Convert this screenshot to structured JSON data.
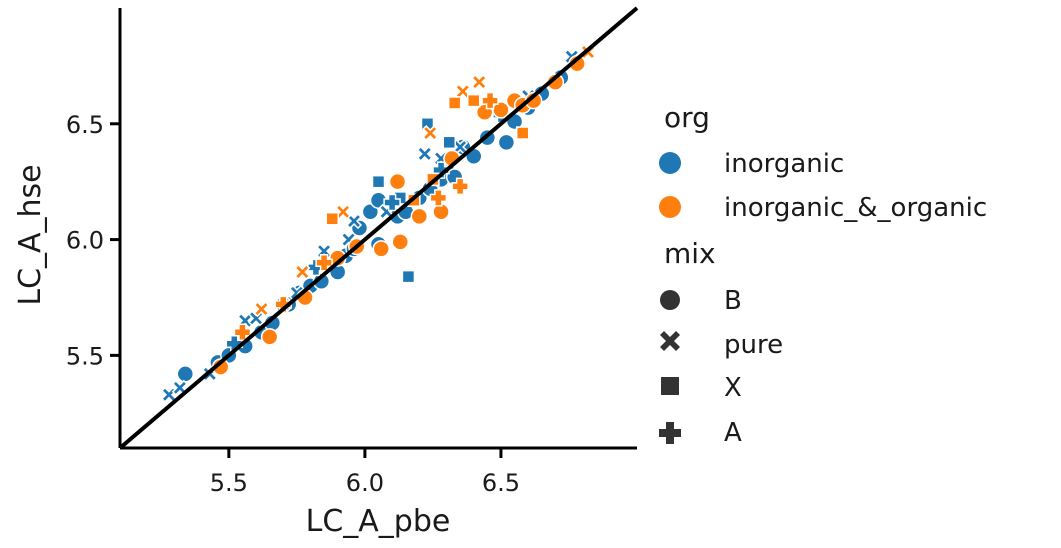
{
  "chart_data": {
    "type": "scatter",
    "title": "",
    "xlabel": "LC_A_pbe",
    "ylabel": "LC_A_hse",
    "xlim": [
      5.1,
      7.0
    ],
    "ylim": [
      5.1,
      7.0
    ],
    "xticks": [
      "5.5",
      "6.0",
      "6.5"
    ],
    "yticks": [
      "5.5",
      "6.0",
      "6.5"
    ],
    "grid": false,
    "reference_line": {
      "from": [
        5.1,
        5.1
      ],
      "to": [
        7.0,
        7.0
      ],
      "color": "#000000"
    },
    "legend": {
      "placement": "right",
      "hue_title": "org",
      "hue_entries": [
        {
          "label": "inorganic",
          "color": "#1f77b4"
        },
        {
          "label": "inorganic_&_organic",
          "color": "#ff7f0e"
        }
      ],
      "style_title": "mix",
      "style_entries": [
        {
          "label": "B",
          "marker": "circle"
        },
        {
          "label": "pure",
          "marker": "x"
        },
        {
          "label": "X",
          "marker": "square"
        },
        {
          "label": "A",
          "marker": "plus"
        }
      ]
    },
    "series": [
      {
        "org": "inorganic",
        "mix": "B",
        "points": [
          [
            5.34,
            5.42
          ],
          [
            5.46,
            5.47
          ],
          [
            5.5,
            5.5
          ],
          [
            5.56,
            5.54
          ],
          [
            5.62,
            5.6
          ],
          [
            5.66,
            5.64
          ],
          [
            5.72,
            5.72
          ],
          [
            5.76,
            5.77
          ],
          [
            5.8,
            5.8
          ],
          [
            5.84,
            5.82
          ],
          [
            5.9,
            5.86
          ],
          [
            5.93,
            5.93
          ],
          [
            5.96,
            5.96
          ],
          [
            5.98,
            6.05
          ],
          [
            6.02,
            6.12
          ],
          [
            6.05,
            6.17
          ],
          [
            6.05,
            5.98
          ],
          [
            6.12,
            6.1
          ],
          [
            6.15,
            6.12
          ],
          [
            6.2,
            6.18
          ],
          [
            6.24,
            6.22
          ],
          [
            6.28,
            6.26
          ],
          [
            6.3,
            6.32
          ],
          [
            6.33,
            6.27
          ],
          [
            6.36,
            6.4
          ],
          [
            6.4,
            6.36
          ],
          [
            6.45,
            6.44
          ],
          [
            6.52,
            6.42
          ],
          [
            6.55,
            6.51
          ],
          [
            6.6,
            6.57
          ],
          [
            6.65,
            6.63
          ],
          [
            6.72,
            6.7
          ]
        ]
      },
      {
        "org": "inorganic",
        "mix": "pure",
        "points": [
          [
            5.28,
            5.33
          ],
          [
            5.32,
            5.36
          ],
          [
            5.43,
            5.42
          ],
          [
            5.56,
            5.65
          ],
          [
            5.6,
            5.66
          ],
          [
            5.7,
            5.72
          ],
          [
            5.75,
            5.77
          ],
          [
            5.85,
            5.95
          ],
          [
            5.94,
            6.0
          ],
          [
            5.96,
            6.08
          ],
          [
            6.08,
            6.12
          ],
          [
            6.22,
            6.37
          ],
          [
            6.28,
            6.35
          ],
          [
            6.35,
            6.4
          ],
          [
            6.6,
            6.62
          ],
          [
            6.76,
            6.79
          ]
        ]
      },
      {
        "org": "inorganic",
        "mix": "X",
        "points": [
          [
            6.05,
            6.25
          ],
          [
            6.23,
            6.5
          ],
          [
            6.16,
            5.84
          ],
          [
            6.31,
            6.42
          ],
          [
            6.13,
            6.18
          ]
        ]
      },
      {
        "org": "inorganic",
        "mix": "A",
        "points": [
          [
            5.52,
            5.55
          ],
          [
            5.82,
            5.88
          ],
          [
            6.1,
            6.16
          ],
          [
            6.28,
            6.3
          ],
          [
            6.5,
            6.54
          ]
        ]
      },
      {
        "org": "inorganic_&_organic",
        "mix": "B",
        "points": [
          [
            5.47,
            5.45
          ],
          [
            5.65,
            5.58
          ],
          [
            5.78,
            5.75
          ],
          [
            5.9,
            5.92
          ],
          [
            5.97,
            5.97
          ],
          [
            6.06,
            5.96
          ],
          [
            6.12,
            6.25
          ],
          [
            6.13,
            5.99
          ],
          [
            6.2,
            6.1
          ],
          [
            6.28,
            6.12
          ],
          [
            6.32,
            6.35
          ],
          [
            6.44,
            6.55
          ],
          [
            6.5,
            6.56
          ],
          [
            6.55,
            6.6
          ],
          [
            6.58,
            6.58
          ],
          [
            6.62,
            6.6
          ],
          [
            6.7,
            6.68
          ],
          [
            6.78,
            6.76
          ]
        ]
      },
      {
        "org": "inorganic_&_organic",
        "mix": "pure",
        "points": [
          [
            5.62,
            5.7
          ],
          [
            5.77,
            5.86
          ],
          [
            5.92,
            6.12
          ],
          [
            6.24,
            6.46
          ],
          [
            6.36,
            6.64
          ],
          [
            6.42,
            6.68
          ],
          [
            6.82,
            6.81
          ]
        ]
      },
      {
        "org": "inorganic_&_organic",
        "mix": "X",
        "points": [
          [
            5.88,
            6.09
          ],
          [
            6.18,
            6.17
          ],
          [
            6.25,
            6.26
          ],
          [
            6.33,
            6.59
          ],
          [
            6.4,
            6.6
          ],
          [
            6.58,
            6.46
          ]
        ]
      },
      {
        "org": "inorganic_&_organic",
        "mix": "A",
        "points": [
          [
            5.55,
            5.6
          ],
          [
            5.7,
            5.72
          ],
          [
            5.85,
            5.9
          ],
          [
            6.27,
            6.18
          ],
          [
            6.35,
            6.23
          ],
          [
            6.46,
            6.6
          ]
        ]
      }
    ]
  }
}
